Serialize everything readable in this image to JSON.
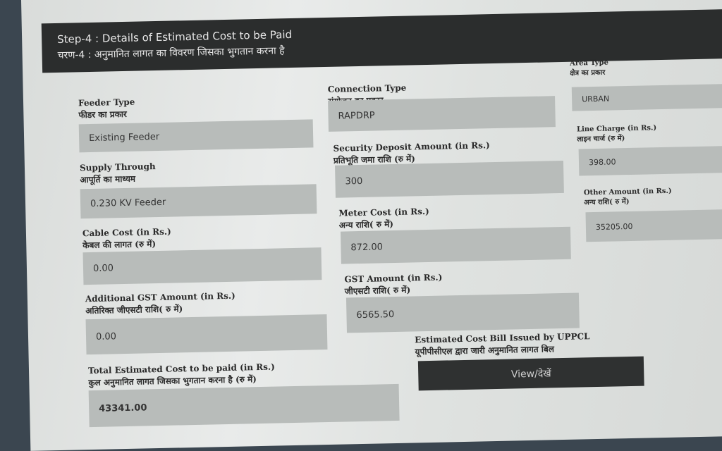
{
  "header": {
    "title_en": "Step-4 : Details of Estimated Cost to be Paid",
    "title_hi": "चरण-4 : अनुमानित लागत का विवरण जिसका भुगतान करना है"
  },
  "fields": [
    {
      "en": "Feeder Type",
      "hi": "फीडर का प्रकार",
      "value": "Existing Feeder"
    },
    {
      "en": "Supply Through",
      "hi": "आपूर्ति का माध्यम",
      "value": "0.230 KV Feeder"
    },
    {
      "en": "Cable Cost (in Rs.)",
      "hi": "केबल की लागत (रु में)",
      "value": "0.00"
    },
    {
      "en": "Additional GST Amount (in Rs.)",
      "hi": "अतिरिक्त जीएसटी राशि( रु में)",
      "value": "0.00"
    },
    {
      "en": "Total Estimated Cost to be paid (in Rs.)",
      "hi": "कुल अनुमानित लागत जिसका भुगतान करना है (रु में)",
      "value": "43341.00"
    },
    {
      "en": "Connection Type",
      "hi": "संयोजन का प्रकार",
      "value": "RAPDRP"
    },
    {
      "en": "Security Deposit Amount (in Rs.)",
      "hi": "प्रतिभूति जमा राशि (रु में)",
      "value": "300"
    },
    {
      "en": "Meter Cost (in Rs.)",
      "hi": "अन्य राशि( रु में)",
      "value": "872.00"
    },
    {
      "en": "GST Amount (in Rs.)",
      "hi": "जीएसटी राशि( रु में)",
      "value": "6565.50"
    },
    {
      "en": "Area Type",
      "hi": "क्षेत्र का प्रकार",
      "value": "URBAN"
    },
    {
      "en": "Line Charge (in Rs.)",
      "hi": "लाइन चार्ज (रु में)",
      "value": "398.00"
    },
    {
      "en": "Other Amount (in Rs.)",
      "hi": "अन्य राशि( रु में)",
      "value": "35205.00"
    }
  ],
  "bill": {
    "en": "Estimated Cost Bill Issued by UPPCL",
    "hi": "यूपीपीसीएल द्वारा जारी अनुमानित लागत बिल",
    "button": "View/देखें"
  }
}
